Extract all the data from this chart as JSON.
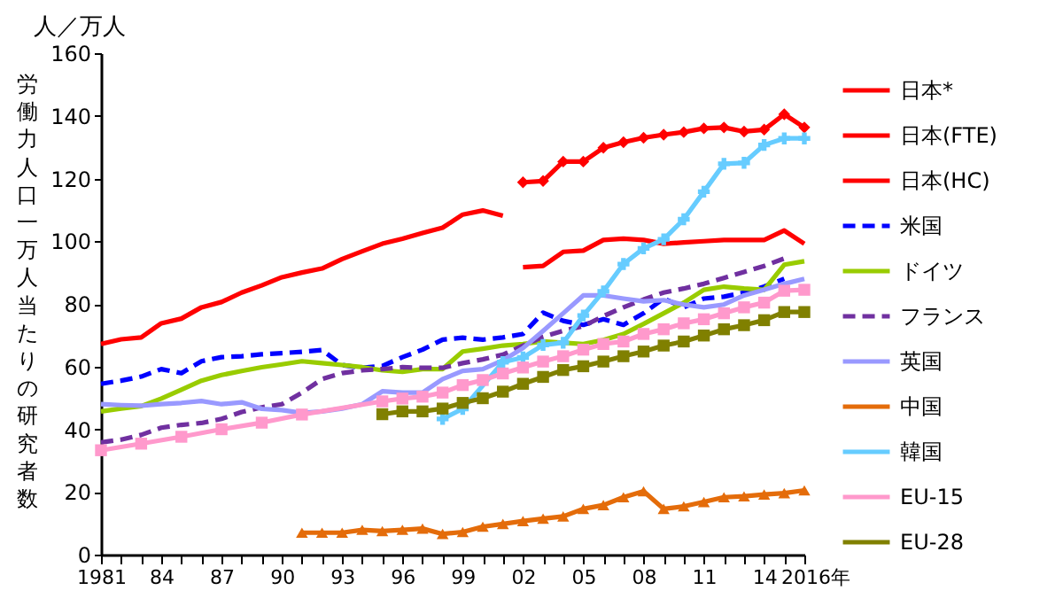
{
  "chart_data": {
    "type": "line",
    "ylabel": "労働力人口一万人当たりの研究者数",
    "annotations": [
      "人／万人"
    ],
    "xlim": [
      1981,
      2016
    ],
    "xticks": [
      1981,
      {
        "value": 1982,
        "label": null
      },
      {
        "value": 1983,
        "label": null
      },
      {
        "value": 1984,
        "label": "84"
      },
      {
        "value": 1985,
        "label": null
      },
      {
        "value": 1986,
        "label": null
      },
      {
        "value": 1987,
        "label": "87"
      },
      {
        "value": 1988,
        "label": null
      },
      {
        "value": 1989,
        "label": null
      },
      {
        "value": 1990,
        "label": "90"
      },
      {
        "value": 1991,
        "label": null
      },
      {
        "value": 1992,
        "label": null
      },
      {
        "value": 1993,
        "label": "93"
      },
      {
        "value": 1994,
        "label": null
      },
      {
        "value": 1995,
        "label": null
      },
      {
        "value": 1996,
        "label": "96"
      },
      {
        "value": 1997,
        "label": null
      },
      {
        "value": 1998,
        "label": null
      },
      {
        "value": 1999,
        "label": "99"
      },
      {
        "value": 2000,
        "label": null
      },
      {
        "value": 2001,
        "label": null
      },
      {
        "value": 2002,
        "label": "02"
      },
      {
        "value": 2003,
        "label": null
      },
      {
        "value": 2004,
        "label": null
      },
      {
        "value": 2005,
        "label": "05"
      },
      {
        "value": 2006,
        "label": null
      },
      {
        "value": 2007,
        "label": null
      },
      {
        "value": 2008,
        "label": "08"
      },
      {
        "value": 2009,
        "label": null
      },
      {
        "value": 2010,
        "label": null
      },
      {
        "value": 2011,
        "label": "11"
      },
      {
        "value": 2012,
        "label": null
      },
      {
        "value": 2013,
        "label": null
      },
      {
        "value": 2014,
        "label": "14"
      },
      {
        "value": 2015,
        "label": null
      },
      {
        "value": 2016,
        "label": "2016年"
      }
    ],
    "ylim": [
      0,
      160
    ],
    "yticks": [
      0,
      20,
      40,
      60,
      80,
      100,
      120,
      140,
      160
    ],
    "grid": false,
    "legend": "right",
    "series": [
      {
        "name": "日本*",
        "color": "#ff0000",
        "marker": "none",
        "line_style": "solid",
        "x": [
          1981,
          1982,
          1983,
          1984,
          1985,
          1986,
          1987,
          1988,
          1989,
          1990,
          1991,
          1992,
          1993,
          1994,
          1995,
          1996,
          1997,
          1998,
          1999,
          2000,
          2001
        ],
        "values": [
          67.2,
          68.7,
          69.3,
          73.8,
          75.3,
          78.9,
          80.6,
          83.6,
          85.9,
          88.5,
          90,
          91.3,
          94.3,
          96.8,
          99.2,
          100.8,
          102.6,
          104.3,
          108.5,
          109.8,
          108.1
        ]
      },
      {
        "name": "日本(FTE)",
        "color": "#ff0000",
        "marker": "none",
        "line_style": "solid",
        "x": [
          2002,
          2003,
          2004,
          2005,
          2006,
          2007,
          2008,
          2009,
          2010,
          2011,
          2012,
          2013,
          2014,
          2015,
          2016
        ],
        "values": [
          91.7,
          92.1,
          96.6,
          97,
          100.4,
          100.8,
          100.4,
          99.2,
          99.6,
          100,
          100.4,
          100.4,
          100.4,
          103.4,
          99.2
        ]
      },
      {
        "name": "日本(HC)",
        "color": "#ff0000",
        "marker": "diamond",
        "line_style": "solid",
        "x": [
          2002,
          2003,
          2004,
          2005,
          2006,
          2007,
          2008,
          2009,
          2010,
          2011,
          2012,
          2013,
          2014,
          2015,
          2016
        ],
        "values": [
          118.8,
          119.2,
          125.4,
          125.4,
          129.8,
          131.6,
          133,
          134,
          134.8,
          136,
          136.3,
          135,
          135.6,
          140.5,
          136.3
        ]
      },
      {
        "name": "米国",
        "color": "#0000ff",
        "marker": "none",
        "line_style": "dashed",
        "x": [
          1981,
          1982,
          1983,
          1984,
          1985,
          1986,
          1987,
          1988,
          1989,
          1990,
          1991,
          1992,
          1993,
          1994,
          1995,
          1996,
          1997,
          1998,
          1999,
          2000,
          2001,
          2002,
          2003,
          2004,
          2005,
          2006,
          2007,
          2008,
          2009,
          2010,
          2011,
          2012,
          2013,
          2014,
          2015
        ],
        "values": [
          54.5,
          55.5,
          56.8,
          59.2,
          57.9,
          61.7,
          63,
          63.3,
          63.9,
          64.3,
          64.7,
          65.3,
          60.5,
          59.6,
          60.2,
          63,
          65.4,
          68.6,
          69.2,
          68.6,
          69.3,
          70.4,
          77.2,
          74.6,
          73.3,
          75.1,
          73.3,
          77,
          81.7,
          78.9,
          81.7,
          82.3,
          83.6,
          85.5,
          88
        ]
      },
      {
        "name": "ドイツ",
        "color": "#99cc00",
        "marker": "none",
        "line_style": "solid",
        "x": [
          1981,
          1982,
          1983,
          1984,
          1985,
          1986,
          1987,
          1988,
          1989,
          1990,
          1991,
          1992,
          1993,
          1994,
          1995,
          1996,
          1997,
          1998,
          1999,
          2000,
          2001,
          2002,
          2003,
          2004,
          2005,
          2006,
          2007,
          2008,
          2009,
          2010,
          2011,
          2012,
          2013,
          2014,
          2015,
          2016
        ],
        "values": [
          45.7,
          46.6,
          47.4,
          49.8,
          52.6,
          55.5,
          57.3,
          58.6,
          59.8,
          60.7,
          61.7,
          61.1,
          60.5,
          59.8,
          58.8,
          58.3,
          59.2,
          59.2,
          64.8,
          65.7,
          66.7,
          67.2,
          68,
          67.6,
          67.2,
          68.5,
          70.4,
          73.6,
          77,
          80.4,
          84.5,
          85.5,
          84.9,
          84.5,
          92.5,
          93.6
        ]
      },
      {
        "name": "フランス",
        "color": "#7030a0",
        "marker": "none",
        "line_style": "dashed",
        "x": [
          1981,
          1982,
          1983,
          1984,
          1985,
          1986,
          1987,
          1988,
          1989,
          1990,
          1991,
          1992,
          1993,
          1994,
          1995,
          1996,
          1997,
          1998,
          1999,
          2000,
          2001,
          2002,
          2003,
          2004,
          2005,
          2006,
          2007,
          2008,
          2009,
          2010,
          2011,
          2012,
          2013,
          2014,
          2015
        ],
        "values": [
          35.8,
          36.7,
          38.2,
          40.5,
          41.4,
          42,
          43.3,
          45.5,
          47,
          48,
          51.7,
          56,
          57.9,
          58.8,
          59.2,
          59.8,
          59.6,
          59.6,
          61.1,
          62.3,
          63.8,
          66.7,
          69.5,
          71.4,
          72.9,
          76.1,
          78.9,
          81.4,
          83.6,
          84.9,
          86.4,
          88.3,
          90.2,
          92.1,
          94.5
        ]
      },
      {
        "name": "英国",
        "color": "#9999ff",
        "marker": "none",
        "line_style": "solid",
        "x": [
          1981,
          1982,
          1983,
          1984,
          1985,
          1986,
          1987,
          1988,
          1989,
          1990,
          1991,
          1992,
          1993,
          1994,
          1995,
          1996,
          1997,
          1998,
          1999,
          2000,
          2001,
          2002,
          2003,
          2004,
          2005,
          2006,
          2007,
          2008,
          2009,
          2010,
          2011,
          2012,
          2013,
          2014,
          2015,
          2016
        ],
        "values": [
          48,
          47.7,
          47.5,
          48,
          48.4,
          49,
          48,
          48.6,
          46.5,
          46.1,
          45.2,
          45.7,
          46.6,
          48,
          52.1,
          51.7,
          51.7,
          56,
          58.6,
          59.2,
          62,
          65.9,
          71.4,
          77,
          82.7,
          82.7,
          81.7,
          80.8,
          81.2,
          79.8,
          78.9,
          79.8,
          82.7,
          84.5,
          86.4,
          88
        ]
      },
      {
        "name": "中国",
        "color": "#e46c0a",
        "marker": "triangle",
        "line_style": "solid",
        "x": [
          1991,
          1992,
          1993,
          1994,
          1995,
          1996,
          1997,
          1998,
          1999,
          2000,
          2001,
          2002,
          2003,
          2004,
          2005,
          2006,
          2007,
          2008,
          2009,
          2010,
          2011,
          2012,
          2013,
          2014,
          2015,
          2016
        ],
        "values": [
          7,
          7,
          7,
          7.9,
          7.5,
          7.9,
          8.3,
          6.6,
          7.2,
          8.9,
          9.8,
          10.7,
          11.5,
          12.2,
          14.6,
          15.8,
          18.3,
          20.2,
          14.6,
          15.4,
          16.8,
          18.3,
          18.6,
          19.2,
          19.6,
          20.5
        ]
      },
      {
        "name": "韓国",
        "color": "#66ccff",
        "marker": "cross",
        "line_style": "solid",
        "x": [
          1998,
          1999,
          2001,
          2002,
          2003,
          2004,
          2005,
          2006,
          2007,
          2008,
          2009,
          2010,
          2011,
          2012,
          2013,
          2014,
          2015,
          2016
        ],
        "values": [
          43.3,
          46.5,
          61.4,
          62.9,
          66.9,
          67.6,
          76.3,
          84,
          92.7,
          97.7,
          100.6,
          107,
          115.8,
          124.7,
          125,
          130.7,
          132.8,
          132.8
        ]
      },
      {
        "name": "EU-15",
        "color": "#ff99cc",
        "marker": "square",
        "line_style": "solid",
        "x": [
          1981,
          1983,
          1985,
          1987,
          1989,
          1991,
          1995,
          1996,
          1997,
          1998,
          1999,
          2000,
          2001,
          2002,
          2003,
          2004,
          2005,
          2006,
          2007,
          2008,
          2009,
          2010,
          2011,
          2012,
          2013,
          2014,
          2015,
          2016
        ],
        "values": [
          33.3,
          35.4,
          37.6,
          40,
          42.1,
          44.7,
          48.9,
          49.8,
          50.4,
          51.7,
          54.1,
          55.7,
          57.8,
          59.7,
          61.6,
          63.3,
          65.4,
          67.2,
          68,
          70.4,
          71.9,
          73.8,
          75.1,
          77,
          78.9,
          80.4,
          84.2,
          84.5
        ]
      },
      {
        "name": "EU-28",
        "color": "#808000",
        "marker": "square",
        "line_style": "solid",
        "x": [
          1995,
          1996,
          1997,
          1998,
          1999,
          2000,
          2001,
          2002,
          2003,
          2004,
          2005,
          2006,
          2007,
          2008,
          2009,
          2010,
          2011,
          2012,
          2013,
          2014,
          2015,
          2016
        ],
        "values": [
          44.8,
          45.7,
          45.7,
          46.6,
          48.4,
          49.9,
          52,
          54.5,
          56.7,
          58.9,
          60.1,
          61.6,
          63.3,
          64.8,
          66.7,
          68,
          69.9,
          71.9,
          73.2,
          74.8,
          77.4,
          77.4
        ]
      }
    ]
  }
}
